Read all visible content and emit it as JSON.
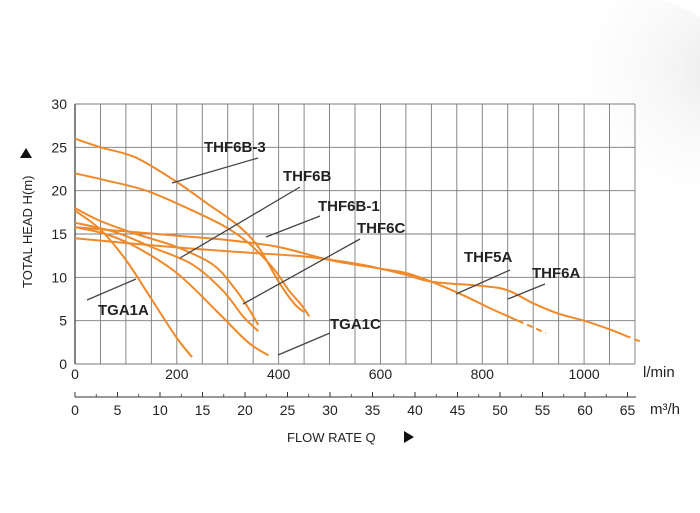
{
  "chart_data": {
    "type": "line",
    "ylabel": "TOTAL HEAD H(m)",
    "xlabel": "FLOW RATE Q",
    "x_unit": "l/min",
    "x2_unit": "m³/h",
    "ylim": [
      0,
      30
    ],
    "xlim": [
      0,
      1100
    ],
    "x2lim": [
      0,
      66
    ],
    "y_ticks": [
      "0",
      "5",
      "10",
      "15",
      "20",
      "25",
      "30"
    ],
    "x_ticks": [
      "0",
      "200",
      "400",
      "600",
      "800",
      "1000"
    ],
    "x2_ticks": [
      "0",
      "5",
      "10",
      "15",
      "20",
      "25",
      "30",
      "35",
      "40",
      "45",
      "50",
      "55",
      "60",
      "65"
    ],
    "grid": true,
    "line_color": "#f0892a",
    "series": [
      {
        "name": "THF6B-3",
        "points": [
          [
            0,
            26
          ],
          [
            50,
            25
          ],
          [
            120,
            23.8
          ],
          [
            200,
            21
          ],
          [
            260,
            18.5
          ],
          [
            320,
            16
          ],
          [
            360,
            13.5
          ],
          [
            400,
            9.5
          ],
          [
            430,
            7
          ],
          [
            450,
            6
          ]
        ],
        "dashed_from": 420,
        "dashed_to": 5
      },
      {
        "name": "THF6B",
        "points": [
          [
            0,
            22
          ],
          [
            60,
            21.2
          ],
          [
            140,
            20
          ],
          [
            220,
            18
          ],
          [
            290,
            16
          ],
          [
            340,
            14
          ],
          [
            390,
            11
          ],
          [
            420,
            8.5
          ],
          [
            445,
            6.8
          ],
          [
            460,
            5.5
          ]
        ],
        "dashed_from": 60,
        "dashed_to": 0
      },
      {
        "name": "THF6B-1",
        "points": [
          [
            0,
            18
          ],
          [
            50,
            16.5
          ],
          [
            120,
            15
          ],
          [
            200,
            13.5
          ],
          [
            270,
            11.5
          ],
          [
            310,
            9
          ],
          [
            340,
            6.5
          ],
          [
            360,
            4.5
          ]
        ],
        "dashed_from": 340,
        "dashed_to": 0
      },
      {
        "name": "THF6C",
        "points": [
          [
            0,
            16.3
          ],
          [
            80,
            15.2
          ],
          [
            150,
            13.5
          ],
          [
            230,
            11.5
          ],
          [
            290,
            8.5
          ],
          [
            330,
            5.5
          ],
          [
            360,
            3.8
          ]
        ],
        "dashed_from": 320,
        "dashed_to": 0
      },
      {
        "name": "TGA1A",
        "points": [
          [
            0,
            17.7
          ],
          [
            50,
            15.5
          ],
          [
            100,
            12
          ],
          [
            150,
            7.5
          ],
          [
            200,
            3
          ],
          [
            230,
            0.8
          ]
        ],
        "dashed_from": 200,
        "dashed_to": 0
      },
      {
        "name": "TGA1C",
        "points": [
          [
            0,
            15.8
          ],
          [
            60,
            15
          ],
          [
            120,
            13.5
          ],
          [
            200,
            10.5
          ],
          [
            280,
            6
          ],
          [
            340,
            2.5
          ],
          [
            380,
            1
          ]
        ],
        "dashed_from": 0,
        "dashed_to": 0
      },
      {
        "name": "THF5A",
        "points": [
          [
            0,
            15.8
          ],
          [
            100,
            15.3
          ],
          [
            200,
            14.8
          ],
          [
            300,
            14.3
          ],
          [
            400,
            13.5
          ],
          [
            500,
            12
          ],
          [
            600,
            11
          ],
          [
            650,
            10.5
          ],
          [
            700,
            9.5
          ],
          [
            760,
            8
          ],
          [
            820,
            6.3
          ],
          [
            870,
            5
          ]
        ],
        "dashed_from": 870,
        "dashed_to": 4
      },
      {
        "name": "THF6A",
        "points": [
          [
            0,
            14.5
          ],
          [
            150,
            13.7
          ],
          [
            300,
            13
          ],
          [
            450,
            12.4
          ],
          [
            550,
            11.6
          ],
          [
            600,
            11
          ],
          [
            650,
            10.3
          ],
          [
            700,
            9.5
          ],
          [
            800,
            9
          ],
          [
            850,
            8.5
          ],
          [
            900,
            7
          ],
          [
            950,
            5.8
          ],
          [
            1000,
            5
          ],
          [
            1050,
            4
          ],
          [
            1080,
            3.3
          ]
        ],
        "dashed_from": 1080,
        "dashed_to": 2.8
      }
    ],
    "annotations": [
      {
        "text": "THF6B-3",
        "series": "THF6B-3"
      },
      {
        "text": "THF6B",
        "series": "THF6B"
      },
      {
        "text": "THF6B-1",
        "series": "THF6B-1"
      },
      {
        "text": "THF6C",
        "series": "THF6C"
      },
      {
        "text": "THF5A",
        "series": "THF5A"
      },
      {
        "text": "THF6A",
        "series": "THF6A"
      },
      {
        "text": "TGA1A",
        "series": "TGA1A"
      },
      {
        "text": "TGA1C",
        "series": "TGA1C"
      }
    ]
  }
}
